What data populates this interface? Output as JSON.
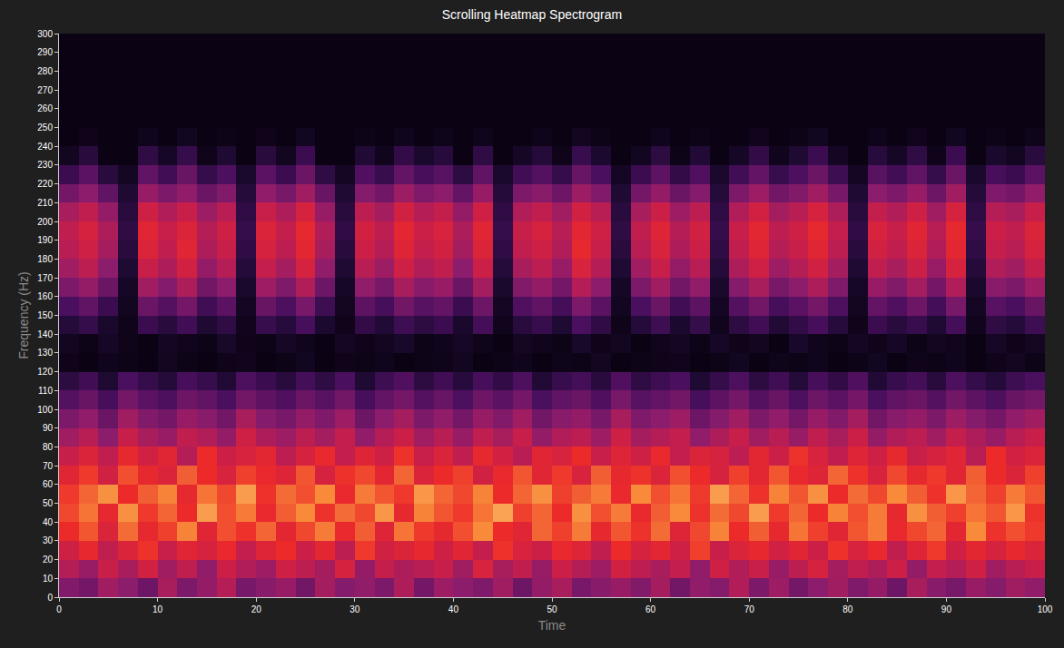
{
  "chart_data": {
    "type": "heatmap",
    "title": "Scrolling Heatmap Spectrogram",
    "x_label": "Time",
    "y_label": "Frequency (Hz)",
    "xlim": [
      0,
      100
    ],
    "ylim": [
      0,
      300
    ],
    "xticks": [
      0,
      10,
      20,
      30,
      40,
      50,
      60,
      70,
      80,
      90,
      100
    ],
    "yticks": [
      0,
      10,
      20,
      30,
      40,
      50,
      60,
      70,
      80,
      90,
      100,
      110,
      120,
      130,
      140,
      150,
      160,
      170,
      180,
      190,
      200,
      210,
      220,
      230,
      240,
      250,
      260,
      270,
      280,
      290,
      300
    ],
    "zlim": [
      0,
      100
    ],
    "grid": false,
    "x": [
      1,
      3,
      5,
      7,
      9,
      11,
      13,
      15,
      17,
      19,
      21,
      23,
      25,
      27,
      29,
      31,
      33,
      35,
      37,
      39,
      41,
      43,
      45,
      47,
      49,
      51,
      53,
      55,
      57,
      59,
      61,
      63,
      65,
      67,
      69,
      71,
      73,
      75,
      77,
      79,
      81,
      83,
      85,
      87,
      89,
      91,
      93,
      95,
      97,
      99
    ],
    "y": [
      5,
      15,
      25,
      35,
      45,
      55,
      65,
      75,
      85,
      95,
      105,
      115,
      125,
      135,
      145,
      155,
      165,
      175,
      185,
      195,
      205,
      215,
      225,
      235,
      245,
      255,
      265,
      275,
      285,
      295
    ],
    "values": [
      [
        42,
        38,
        50,
        45,
        36,
        52,
        40,
        47,
        55,
        39,
        44,
        48,
        37,
        51,
        43,
        46,
        40,
        53,
        38,
        49,
        45,
        41,
        50,
        36,
        47,
        52,
        39,
        44,
        48,
        42,
        51,
        37,
        46,
        43,
        54,
        40,
        49,
        38,
        45,
        50,
        41,
        47,
        36,
        52,
        44,
        39,
        48,
        43,
        50,
        46
      ],
      [
        55,
        48,
        60,
        52,
        63,
        50,
        58,
        46,
        61,
        54,
        49,
        62,
        57,
        51,
        64,
        47,
        59,
        53,
        56,
        60,
        50,
        65,
        52,
        58,
        48,
        61,
        55,
        49,
        63,
        57,
        52,
        59,
        46,
        62,
        54,
        60,
        48,
        57,
        64,
        51,
        58,
        53,
        61,
        47,
        59,
        55,
        62,
        50,
        56,
        60
      ],
      [
        62,
        70,
        58,
        66,
        73,
        60,
        68,
        64,
        71,
        59,
        67,
        72,
        61,
        69,
        57,
        74,
        63,
        66,
        70,
        62,
        68,
        59,
        73,
        65,
        61,
        71,
        67,
        58,
        72,
        64,
        69,
        62,
        75,
        60,
        66,
        70,
        63,
        68,
        61,
        73,
        65,
        71,
        58,
        67,
        74,
        62,
        69,
        64,
        70,
        66
      ],
      [
        72,
        78,
        66,
        81,
        70,
        75,
        84,
        68,
        77,
        73,
        80,
        69,
        76,
        83,
        71,
        79,
        67,
        82,
        74,
        70,
        77,
        85,
        72,
        68,
        80,
        75,
        83,
        70,
        78,
        73,
        81,
        67,
        76,
        84,
        72,
        79,
        70,
        82,
        75,
        68,
        78,
        83,
        71,
        76,
        80,
        69,
        85,
        73,
        77,
        74
      ],
      [
        76,
        82,
        70,
        86,
        74,
        80,
        72,
        88,
        77,
        83,
        71,
        79,
        85,
        73,
        81,
        76,
        87,
        70,
        84,
        78,
        74,
        82,
        89,
        75,
        80,
        72,
        86,
        77,
        83,
        71,
        79,
        85,
        73,
        81,
        76,
        88,
        74,
        80,
        72,
        84,
        77,
        83,
        70,
        86,
        79,
        75,
        82,
        78,
        87,
        73
      ],
      [
        74,
        80,
        86,
        72,
        79,
        84,
        70,
        82,
        76,
        88,
        73,
        81,
        77,
        85,
        71,
        83,
        78,
        74,
        87,
        80,
        76,
        84,
        72,
        80,
        86,
        75,
        79,
        83,
        71,
        85,
        77,
        82,
        74,
        88,
        80,
        73,
        84,
        78,
        86,
        72,
        81,
        76,
        85,
        79,
        73,
        87,
        80,
        75,
        83,
        78
      ],
      [
        68,
        74,
        63,
        77,
        70,
        66,
        79,
        72,
        65,
        75,
        71,
        67,
        78,
        64,
        73,
        76,
        69,
        80,
        66,
        72,
        75,
        63,
        71,
        78,
        68,
        74,
        65,
        79,
        70,
        73,
        66,
        77,
        72,
        64,
        75,
        69,
        78,
        71,
        67,
        80,
        73,
        65,
        76,
        70,
        74,
        68,
        79,
        72,
        66,
        75
      ],
      [
        60,
        66,
        58,
        70,
        63,
        68,
        55,
        72,
        61,
        65,
        69,
        57,
        64,
        71,
        59,
        67,
        62,
        73,
        60,
        66,
        58,
        70,
        63,
        56,
        68,
        65,
        72,
        60,
        67,
        62,
        71,
        59,
        66,
        64,
        57,
        69,
        61,
        73,
        65,
        58,
        67,
        62,
        70,
        60,
        64,
        68,
        56,
        72,
        63,
        66
      ],
      [
        50,
        56,
        45,
        60,
        52,
        48,
        58,
        54,
        47,
        62,
        53,
        49,
        57,
        51,
        59,
        46,
        55,
        61,
        50,
        56,
        48,
        58,
        52,
        60,
        47,
        54,
        57,
        49,
        62,
        51,
        55,
        59,
        46,
        53,
        60,
        50,
        56,
        48,
        58,
        52,
        61,
        47,
        54,
        57,
        50,
        59,
        53,
        48,
        56,
        60
      ],
      [
        40,
        46,
        35,
        50,
        42,
        38,
        48,
        44,
        37,
        52,
        43,
        39,
        47,
        41,
        49,
        36,
        45,
        51,
        40,
        46,
        38,
        48,
        42,
        50,
        37,
        44,
        47,
        39,
        52,
        41,
        45,
        49,
        36,
        43,
        50,
        40,
        46,
        38,
        48,
        42,
        51,
        37,
        44,
        47,
        40,
        49,
        43,
        38,
        46,
        50
      ],
      [
        28,
        34,
        24,
        38,
        30,
        26,
        36,
        32,
        25,
        37,
        31,
        27,
        35,
        29,
        37,
        24,
        33,
        38,
        28,
        34,
        26,
        36,
        30,
        38,
        25,
        32,
        35,
        27,
        39,
        29,
        33,
        37,
        24,
        31,
        38,
        28,
        34,
        26,
        36,
        30,
        38,
        25,
        32,
        35,
        28,
        37,
        31,
        26,
        34,
        38
      ],
      [
        15,
        22,
        10,
        25,
        18,
        12,
        24,
        19,
        11,
        26,
        20,
        14,
        23,
        16,
        25,
        10,
        21,
        27,
        15,
        22,
        13,
        24,
        17,
        26,
        11,
        19,
        23,
        14,
        27,
        16,
        21,
        25,
        10,
        18,
        26,
        15,
        22,
        12,
        24,
        17,
        27,
        11,
        19,
        23,
        14,
        26,
        18,
        12,
        21,
        25
      ],
      [
        2,
        0,
        3,
        1,
        0,
        4,
        1,
        0,
        2,
        3,
        0,
        1,
        4,
        0,
        2,
        1,
        3,
        0,
        1,
        2,
        4,
        0,
        1,
        3,
        0,
        2,
        1,
        4,
        0,
        1,
        2,
        3,
        0,
        1,
        4,
        0,
        2,
        1,
        3,
        0,
        1,
        4,
        0,
        2,
        1,
        3,
        0,
        2,
        4,
        1
      ],
      [
        4,
        1,
        6,
        2,
        0,
        5,
        3,
        1,
        7,
        2,
        1,
        6,
        3,
        0,
        5,
        2,
        4,
        7,
        1,
        3,
        6,
        2,
        0,
        5,
        3,
        1,
        7,
        2,
        4,
        0,
        3,
        5,
        1,
        6,
        2,
        4,
        0,
        7,
        3,
        1,
        5,
        2,
        6,
        1,
        4,
        3,
        0,
        6,
        2,
        5
      ],
      [
        12,
        18,
        8,
        2,
        20,
        14,
        22,
        10,
        16,
        3,
        19,
        13,
        24,
        9,
        2,
        17,
        11,
        21,
        15,
        20,
        8,
        23,
        3,
        14,
        19,
        10,
        25,
        16,
        2,
        12,
        21,
        9,
        18,
        3,
        15,
        22,
        11,
        17,
        24,
        13,
        2,
        20,
        14,
        19,
        10,
        23,
        3,
        16,
        12,
        21
      ],
      [
        25,
        32,
        20,
        4,
        35,
        28,
        38,
        22,
        30,
        5,
        34,
        26,
        39,
        21,
        4,
        31,
        24,
        37,
        29,
        33,
        20,
        36,
        5,
        27,
        32,
        23,
        40,
        30,
        4,
        25,
        35,
        22,
        31,
        5,
        28,
        37,
        24,
        30,
        38,
        26,
        4,
        33,
        27,
        36,
        23,
        39,
        5,
        29,
        25,
        34
      ],
      [
        40,
        47,
        35,
        6,
        50,
        43,
        53,
        37,
        45,
        8,
        49,
        41,
        54,
        36,
        6,
        46,
        39,
        52,
        44,
        48,
        35,
        51,
        8,
        42,
        47,
        38,
        55,
        45,
        6,
        40,
        50,
        37,
        46,
        8,
        43,
        52,
        39,
        45,
        53,
        41,
        6,
        48,
        42,
        51,
        38,
        54,
        8,
        44,
        40,
        49
      ],
      [
        50,
        57,
        45,
        10,
        60,
        53,
        63,
        47,
        55,
        12,
        59,
        51,
        64,
        46,
        10,
        56,
        49,
        62,
        54,
        58,
        45,
        61,
        12,
        52,
        57,
        48,
        65,
        55,
        10,
        50,
        60,
        47,
        56,
        12,
        53,
        62,
        49,
        55,
        63,
        51,
        10,
        58,
        52,
        61,
        48,
        64,
        12,
        54,
        50,
        59
      ],
      [
        56,
        62,
        51,
        14,
        66,
        58,
        68,
        53,
        60,
        16,
        64,
        57,
        69,
        52,
        14,
        61,
        55,
        67,
        59,
        63,
        51,
        66,
        16,
        58,
        62,
        54,
        70,
        60,
        14,
        56,
        65,
        53,
        61,
        16,
        58,
        67,
        55,
        60,
        68,
        57,
        14,
        63,
        58,
        66,
        54,
        69,
        16,
        59,
        56,
        64
      ],
      [
        58,
        64,
        53,
        16,
        68,
        60,
        66,
        55,
        62,
        18,
        66,
        59,
        70,
        54,
        16,
        63,
        57,
        69,
        61,
        65,
        53,
        68,
        18,
        60,
        64,
        56,
        69,
        62,
        16,
        58,
        67,
        55,
        63,
        18,
        60,
        69,
        57,
        62,
        70,
        59,
        16,
        65,
        60,
        68,
        56,
        70,
        18,
        61,
        58,
        66
      ],
      [
        52,
        58,
        47,
        14,
        62,
        54,
        60,
        49,
        56,
        16,
        60,
        53,
        64,
        48,
        14,
        57,
        51,
        63,
        55,
        59,
        47,
        62,
        16,
        54,
        58,
        50,
        63,
        56,
        14,
        52,
        61,
        49,
        57,
        16,
        54,
        63,
        51,
        56,
        64,
        53,
        14,
        59,
        54,
        62,
        50,
        64,
        16,
        55,
        52,
        60
      ],
      [
        38,
        45,
        32,
        10,
        48,
        40,
        46,
        35,
        42,
        12,
        46,
        39,
        50,
        34,
        10,
        43,
        37,
        49,
        41,
        45,
        33,
        48,
        12,
        40,
        44,
        36,
        49,
        42,
        10,
        38,
        47,
        35,
        43,
        12,
        40,
        49,
        37,
        42,
        50,
        39,
        10,
        45,
        40,
        48,
        36,
        50,
        12,
        41,
        38,
        46
      ],
      [
        20,
        30,
        14,
        5,
        32,
        22,
        34,
        18,
        26,
        8,
        30,
        20,
        35,
        16,
        5,
        27,
        19,
        33,
        24,
        29,
        15,
        32,
        8,
        22,
        28,
        18,
        34,
        25,
        5,
        20,
        31,
        17,
        27,
        8,
        22,
        33,
        19,
        26,
        35,
        21,
        5,
        29,
        22,
        32,
        18,
        35,
        8,
        24,
        20,
        30
      ],
      [
        4,
        14,
        0,
        0,
        16,
        6,
        18,
        2,
        10,
        0,
        14,
        4,
        20,
        0,
        0,
        11,
        3,
        17,
        8,
        13,
        0,
        16,
        0,
        6,
        12,
        2,
        19,
        9,
        0,
        4,
        15,
        1,
        11,
        0,
        6,
        17,
        3,
        10,
        20,
        5,
        0,
        13,
        6,
        16,
        2,
        20,
        0,
        8,
        4,
        14
      ],
      [
        0,
        2,
        0,
        0,
        3,
        0,
        4,
        0,
        1,
        0,
        2,
        0,
        4,
        0,
        0,
        1,
        0,
        3,
        0,
        2,
        0,
        3,
        0,
        0,
        2,
        0,
        4,
        1,
        0,
        0,
        3,
        0,
        1,
        0,
        0,
        3,
        0,
        1,
        4,
        0,
        0,
        2,
        0,
        3,
        0,
        4,
        0,
        1,
        0,
        2
      ],
      [
        0,
        0,
        0,
        0,
        0,
        0,
        0,
        0,
        0,
        0,
        0,
        0,
        0,
        0,
        0,
        0,
        0,
        0,
        0,
        0,
        0,
        0,
        0,
        0,
        0,
        0,
        0,
        0,
        0,
        0,
        0,
        0,
        0,
        0,
        0,
        0,
        0,
        0,
        0,
        0,
        0,
        0,
        0,
        0,
        0,
        0,
        0,
        0,
        0,
        0
      ],
      [
        0,
        0,
        0,
        0,
        0,
        0,
        0,
        0,
        0,
        0,
        0,
        0,
        0,
        0,
        0,
        0,
        0,
        0,
        0,
        0,
        0,
        0,
        0,
        0,
        0,
        0,
        0,
        0,
        0,
        0,
        0,
        0,
        0,
        0,
        0,
        0,
        0,
        0,
        0,
        0,
        0,
        0,
        0,
        0,
        0,
        0,
        0,
        0,
        0,
        0
      ],
      [
        0,
        0,
        0,
        0,
        0,
        0,
        0,
        0,
        0,
        0,
        0,
        0,
        0,
        0,
        0,
        0,
        0,
        0,
        0,
        0,
        0,
        0,
        0,
        0,
        0,
        0,
        0,
        0,
        0,
        0,
        0,
        0,
        0,
        0,
        0,
        0,
        0,
        0,
        0,
        0,
        0,
        0,
        0,
        0,
        0,
        0,
        0,
        0,
        0,
        0
      ],
      [
        0,
        0,
        0,
        0,
        0,
        0,
        0,
        0,
        0,
        0,
        0,
        0,
        0,
        0,
        0,
        0,
        0,
        0,
        0,
        0,
        0,
        0,
        0,
        0,
        0,
        0,
        0,
        0,
        0,
        0,
        0,
        0,
        0,
        0,
        0,
        0,
        0,
        0,
        0,
        0,
        0,
        0,
        0,
        0,
        0,
        0,
        0,
        0,
        0,
        0
      ],
      [
        0,
        0,
        0,
        0,
        0,
        0,
        0,
        0,
        0,
        0,
        0,
        0,
        0,
        0,
        0,
        0,
        0,
        0,
        0,
        0,
        0,
        0,
        0,
        0,
        0,
        0,
        0,
        0,
        0,
        0,
        0,
        0,
        0,
        0,
        0,
        0,
        0,
        0,
        0,
        0,
        0,
        0,
        0,
        0,
        0,
        0,
        0,
        0,
        0,
        0
      ]
    ]
  }
}
